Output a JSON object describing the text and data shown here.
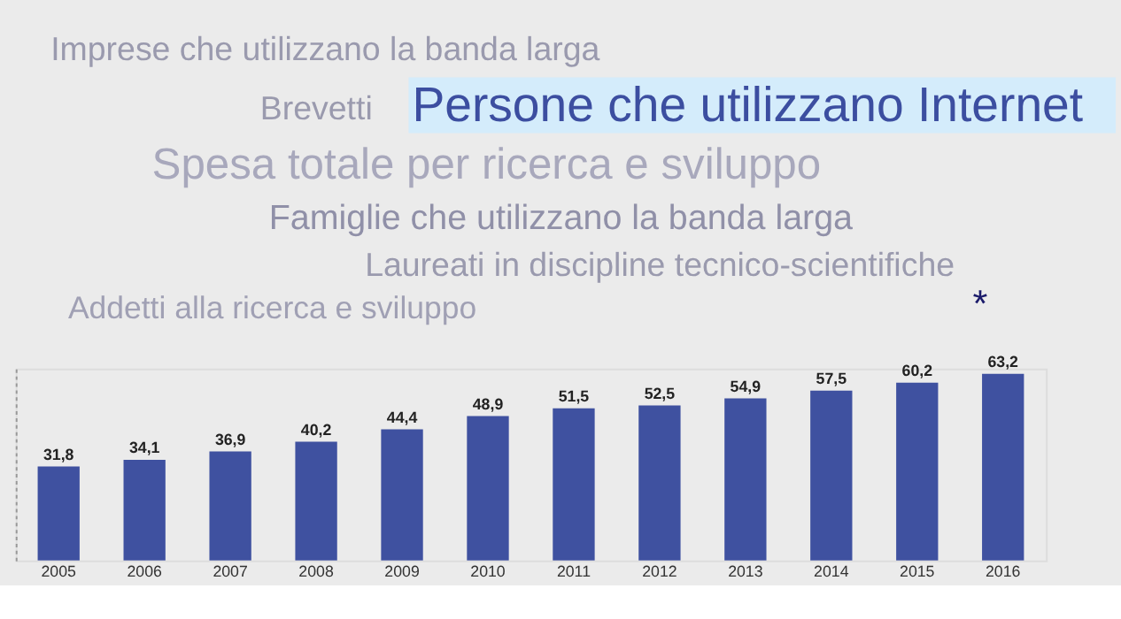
{
  "chart_data": {
    "type": "bar",
    "title": "Persone che utilizzano Internet",
    "annotations": [
      "Imprese che utilizzano la banda larga",
      "Brevetti",
      "Spesa totale per ricerca e sviluppo",
      "Famiglie che utilizzano la banda larga",
      "Laureati in discipline tecnico-scientifiche",
      "Addetti alla ricerca e sviluppo",
      "*"
    ],
    "categories": [
      "2005",
      "2006",
      "2007",
      "2008",
      "2009",
      "2010",
      "2011",
      "2012",
      "2013",
      "2014",
      "2015",
      "2016"
    ],
    "values": [
      31.8,
      34.1,
      36.9,
      40.2,
      44.4,
      48.9,
      51.5,
      52.5,
      54.9,
      57.5,
      60.2,
      63.2
    ],
    "value_labels": [
      "31,8",
      "34,1",
      "36,9",
      "40,2",
      "44,4",
      "48,9",
      "51,5",
      "52,5",
      "54,9",
      "57,5",
      "60,2",
      "63,2"
    ],
    "color": "#3f51a0",
    "tick_labels": "x",
    "grid": false
  }
}
